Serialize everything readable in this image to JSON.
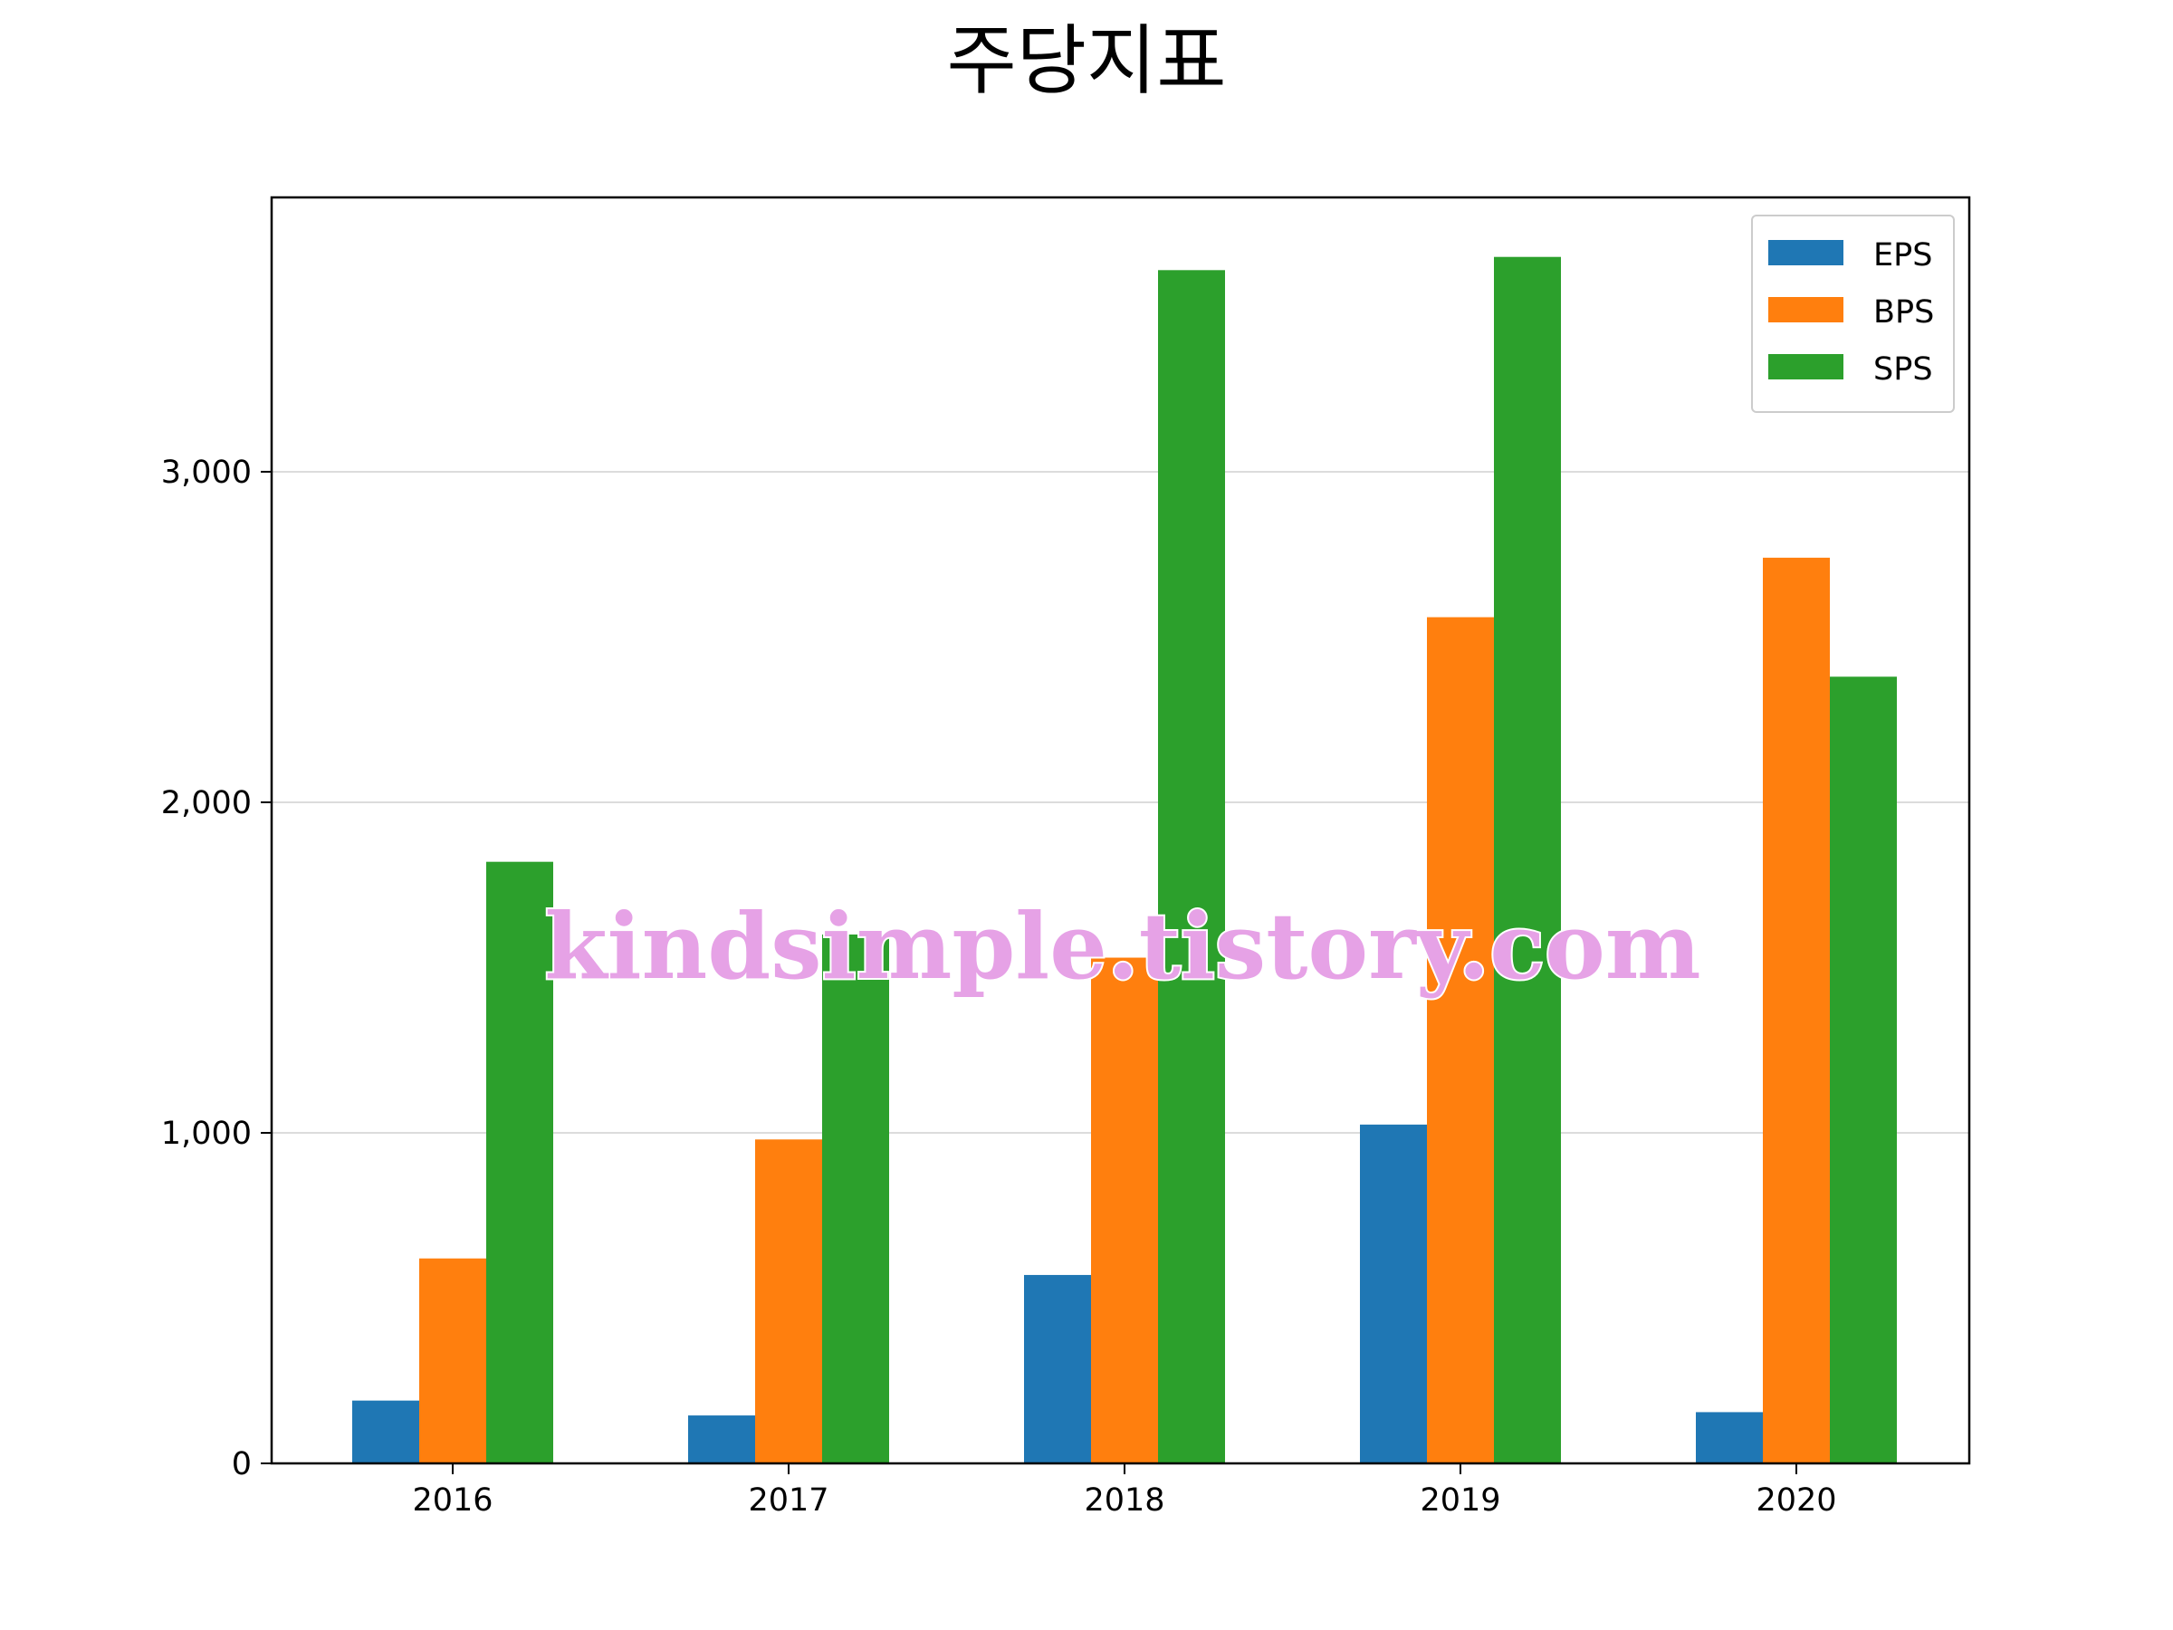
{
  "chart_data": {
    "type": "bar",
    "title": "주당지표",
    "categories": [
      "2016",
      "2017",
      "2018",
      "2019",
      "2020"
    ],
    "series": [
      {
        "name": "EPS",
        "color": "#1f77b4",
        "values": [
          190,
          145,
          570,
          1025,
          155
        ]
      },
      {
        "name": "BPS",
        "color": "#ff7f0e",
        "values": [
          620,
          980,
          1530,
          2560,
          2740
        ]
      },
      {
        "name": "SPS",
        "color": "#2ca02c",
        "values": [
          1820,
          1600,
          3610,
          3650,
          2380
        ]
      }
    ],
    "ylim": [
      0,
      3830
    ],
    "yticks": [
      0,
      1000,
      2000,
      3000
    ],
    "ytick_labels": [
      "0",
      "1,000",
      "2,000",
      "3,000"
    ],
    "xlabel": "",
    "ylabel": "",
    "grid": "y",
    "legend_position": "top-right"
  },
  "watermark": "kindsimple.tistory.com"
}
